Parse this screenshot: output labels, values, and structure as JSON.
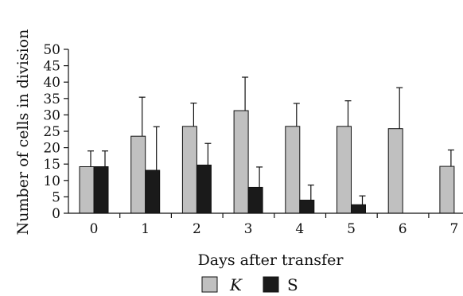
{
  "chart_data": {
    "type": "bar",
    "title": "",
    "xlabel": "Days after transfer",
    "ylabel": "Number of cells in division",
    "ylim": [
      0,
      50
    ],
    "yticks": [
      0,
      5,
      10,
      15,
      20,
      25,
      30,
      35,
      40,
      45,
      50
    ],
    "categories": [
      "0",
      "1",
      "2",
      "3",
      "4",
      "5",
      "6",
      "7"
    ],
    "series": [
      {
        "name": "K",
        "color": "#c0c0c0",
        "values": [
          14.2,
          23.5,
          26.5,
          31.3,
          26.5,
          26.5,
          25.8,
          14.3
        ],
        "errors": [
          4.8,
          11.9,
          7.1,
          10.2,
          7.0,
          7.8,
          12.5,
          5.0
        ]
      },
      {
        "name": "S",
        "color": "#1a1a1a",
        "values": [
          14.2,
          13.1,
          14.7,
          7.9,
          4.0,
          2.6,
          null,
          null
        ],
        "errors": [
          4.8,
          13.3,
          6.6,
          6.2,
          4.6,
          2.7,
          null,
          null
        ]
      }
    ],
    "legend": {
      "position": "bottom-center"
    },
    "grid": false
  }
}
